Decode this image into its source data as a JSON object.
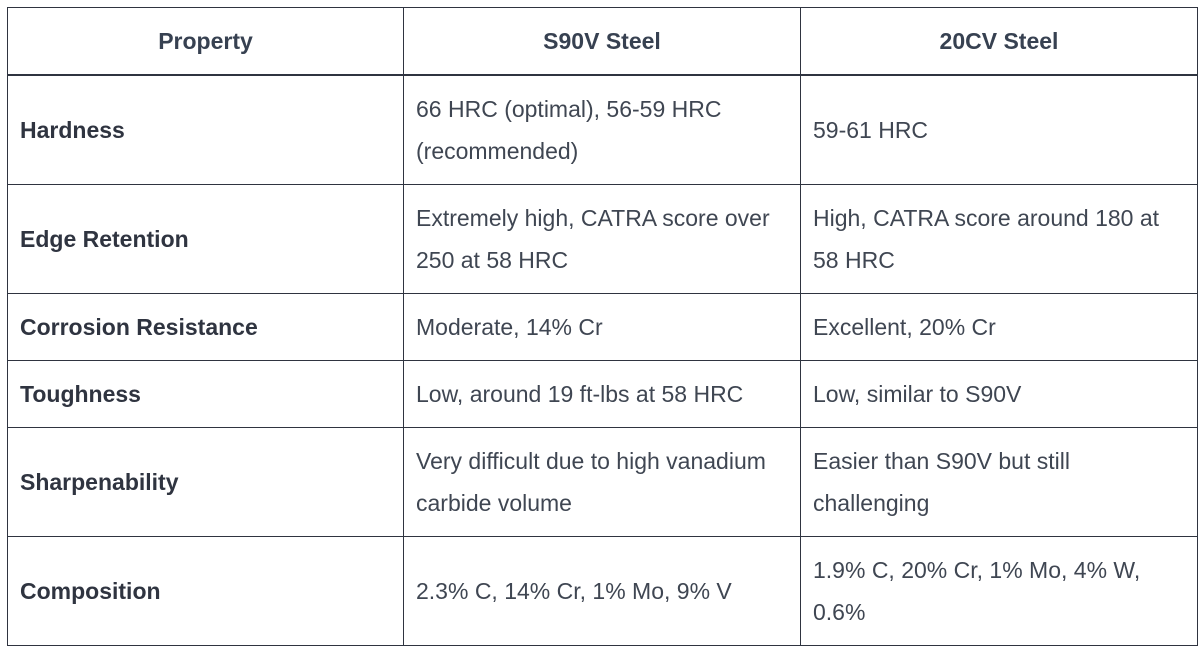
{
  "table": {
    "headers": [
      "Property",
      "S90V Steel",
      "20CV Steel"
    ],
    "rows": [
      {
        "property": "Hardness",
        "s90v": "66 HRC (optimal), 56-59 HRC (recommended)",
        "c20cv": "59-61 HRC"
      },
      {
        "property": "Edge Retention",
        "s90v": "Extremely high, CATRA score over 250 at 58 HRC",
        "c20cv": "High, CATRA score around 180 at 58 HRC"
      },
      {
        "property": "Corrosion Resistance",
        "s90v": "Moderate, 14% Cr",
        "c20cv": "Excellent, 20% Cr"
      },
      {
        "property": "Toughness",
        "s90v": "Low, around 19 ft-lbs at 58 HRC",
        "c20cv": "Low, similar to S90V"
      },
      {
        "property": "Sharpenability",
        "s90v": "Very difficult due to high vanadium carbide volume",
        "c20cv": "Easier than S90V but still challenging"
      },
      {
        "property": "Composition",
        "s90v": "2.3% C, 14% Cr, 1% Mo, 9% V",
        "c20cv": "1.9% C, 20% Cr, 1% Mo, 4% W, 0.6%"
      }
    ]
  }
}
